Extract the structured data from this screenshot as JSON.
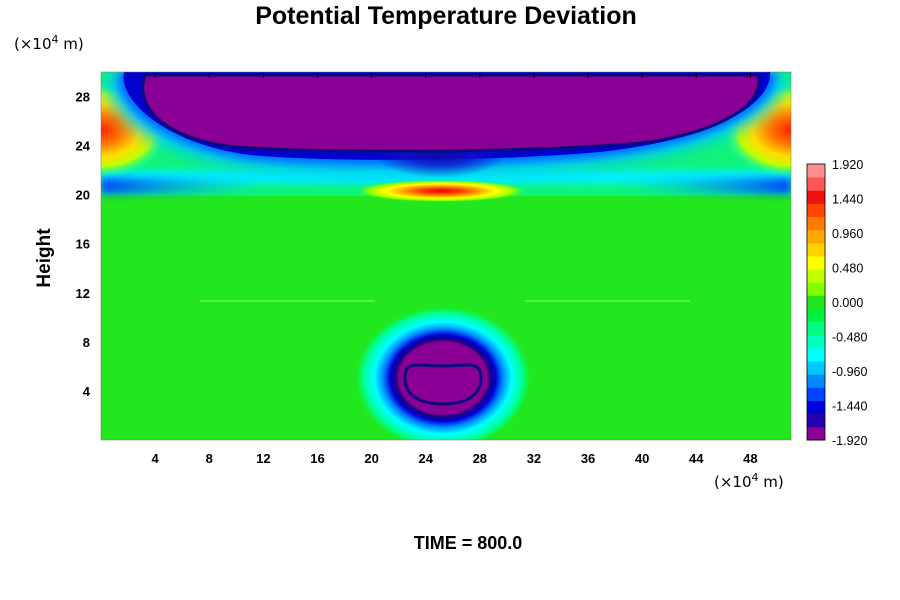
{
  "chart_data": {
    "type": "heatmap",
    "title": "Potential Temperature Deviation",
    "ylabel": "Height",
    "y_unit_prefix": "(×10",
    "y_unit_exp": "4",
    "y_unit_suffix": " m)",
    "x_unit_prefix": "(×10",
    "x_unit_exp": "4",
    "x_unit_suffix": " m)",
    "x_ticks": [
      "4",
      "8",
      "12",
      "16",
      "20",
      "24",
      "28",
      "32",
      "36",
      "40",
      "44",
      "48"
    ],
    "y_ticks": [
      "4",
      "8",
      "12",
      "16",
      "20",
      "24",
      "28"
    ],
    "xlim": [
      0,
      51
    ],
    "ylim": [
      0,
      30
    ],
    "colorbar": {
      "ticks": [
        "1.920",
        "1.440",
        "0.960",
        "0.480",
        "0.000",
        "-0.480",
        "-0.960",
        "-1.440",
        "-1.920"
      ],
      "range": [
        -1.92,
        1.92
      ],
      "colors": [
        "#8a0094",
        "#2400b0",
        "#0000d8",
        "#0044ff",
        "#0088ff",
        "#00c8ff",
        "#00ffff",
        "#00ffc0",
        "#00ff80",
        "#00f040",
        "#22e61e",
        "#7fff00",
        "#bfff00",
        "#ffff00",
        "#ffd200",
        "#ffa800",
        "#ff7a00",
        "#ff4400",
        "#ee1111",
        "#ff5555",
        "#ff8f8f"
      ]
    },
    "features": [
      {
        "name": "upper-cold-region",
        "x_range": [
          3,
          48
        ],
        "y_range": [
          23.5,
          29.8
        ],
        "value": -1.92
      },
      {
        "name": "lower-cold-bubble",
        "x_center": 25.5,
        "y_center": 4.8,
        "value": -1.92
      },
      {
        "name": "warm-band",
        "x_center": 25.5,
        "y_center": 20.2,
        "value": 1.5
      },
      {
        "name": "warm-edge-left",
        "x_center": 0.5,
        "y_center": 25,
        "value": 1.6
      },
      {
        "name": "warm-edge-right",
        "x_center": 50.5,
        "y_center": 25,
        "value": 1.6
      }
    ],
    "background_value": 0.0
  },
  "footer": {
    "time_label": "TIME = 800.0"
  }
}
